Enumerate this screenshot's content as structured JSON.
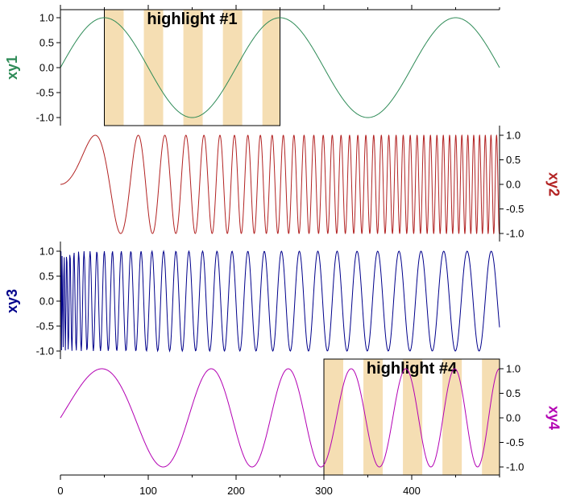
{
  "chart_data": {
    "type": "line",
    "x_label": "",
    "xlim": [
      0,
      500
    ],
    "x_ticks": [
      0,
      100,
      200,
      300,
      400
    ],
    "panels": [
      {
        "name": "xy1",
        "ylabel": "xy1",
        "ylabel_side": "left",
        "color": "#2e8b57",
        "ylim": [
          -1.2,
          1.2
        ],
        "y_ticks": [
          1.0,
          0.5,
          0.0,
          -0.5,
          -1.0
        ],
        "y_tick_labels": [
          "1.0",
          "0.5",
          "0.0",
          "-0.5",
          "-1.0"
        ],
        "function": "sin(2*pi*x/200)",
        "highlight": {
          "label": "highlight #1",
          "x_range": [
            50,
            250
          ],
          "bands": [
            [
              50,
              72
            ],
            [
              95,
              117
            ],
            [
              140,
              162
            ],
            [
              185,
              207
            ],
            [
              230,
              250
            ]
          ],
          "band_color": "#f5deb3"
        }
      },
      {
        "name": "xy2",
        "ylabel": "xy2",
        "ylabel_side": "right",
        "color": "#b22222",
        "ylim": [
          -1.2,
          1.2
        ],
        "y_ticks": [
          1.0,
          0.5,
          0.0,
          -0.5,
          -1.0
        ],
        "y_tick_labels": [
          "1.0",
          "0.5",
          "0.0",
          "-0.5",
          "-1.0"
        ],
        "function": "sin(x^2/1000) chirp"
      },
      {
        "name": "xy3",
        "ylabel": "xy3",
        "ylabel_side": "left",
        "color": "#00008b",
        "ylim": [
          -1.2,
          1.2
        ],
        "y_ticks": [
          1.0,
          0.5,
          0.0,
          -0.5,
          -1.0
        ],
        "y_tick_labels": [
          "1.0",
          "0.5",
          "0.0",
          "-0.5",
          "-1.0"
        ],
        "function": "sin(10*sqrt(x))"
      },
      {
        "name": "xy4",
        "ylabel": "xy4",
        "ylabel_side": "right",
        "color": "#b300b3",
        "ylim": [
          -1.2,
          1.2
        ],
        "y_ticks": [
          1.0,
          0.5,
          0.0,
          -0.5,
          -1.0
        ],
        "y_tick_labels": [
          "1.0",
          "0.5",
          "0.0",
          "-0.5",
          "-1.0"
        ],
        "function": "sin(x^2/10000 + x/35)",
        "highlight": {
          "label": "highlight #4",
          "x_range": [
            300,
            500
          ],
          "bands": [
            [
              300,
              322
            ],
            [
              345,
              367
            ],
            [
              390,
              412
            ],
            [
              435,
              457
            ],
            [
              480,
              500
            ]
          ],
          "band_color": "#f5deb3"
        }
      }
    ]
  }
}
